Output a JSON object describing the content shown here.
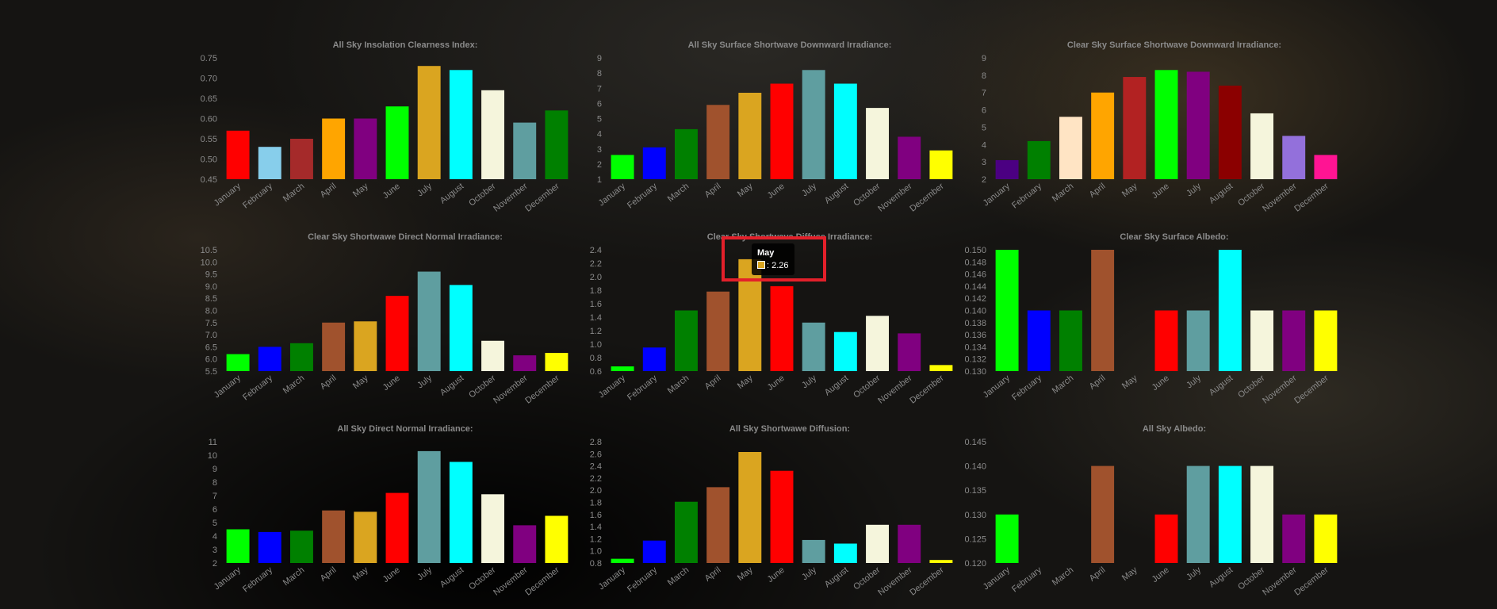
{
  "chart_data": [
    {
      "type": "bar",
      "title": "All Sky Insolation Clearness Index:",
      "categories": [
        "January",
        "February",
        "March",
        "April",
        "May",
        "June",
        "July",
        "August",
        "October",
        "November",
        "December"
      ],
      "values": [
        0.57,
        0.53,
        0.55,
        0.6,
        0.6,
        0.63,
        0.73,
        0.72,
        0.67,
        0.59,
        0.62
      ],
      "colors": [
        "#ff0000",
        "#87ceeb",
        "#a52a2a",
        "#ffa500",
        "#800080",
        "#00ff00",
        "#daa520",
        "#00ffff",
        "#f5f5dc",
        "#5f9ea0",
        "#008000"
      ],
      "ylim": [
        0.45,
        0.75
      ],
      "yticks": [
        "0.45",
        "0.50",
        "0.55",
        "0.60",
        "0.65",
        "0.70",
        "0.75"
      ]
    },
    {
      "type": "bar",
      "title": "All Sky Surface Shortwave Downward Irradiance:",
      "categories": [
        "January",
        "February",
        "March",
        "April",
        "May",
        "June",
        "July",
        "August",
        "October",
        "November",
        "December"
      ],
      "values": [
        2.6,
        3.1,
        4.3,
        5.9,
        6.7,
        7.3,
        8.2,
        7.3,
        5.7,
        3.8,
        2.9
      ],
      "colors": [
        "#00ff00",
        "#0000ff",
        "#008000",
        "#a0522d",
        "#daa520",
        "#ff0000",
        "#5f9ea0",
        "#00ffff",
        "#f5f5dc",
        "#800080",
        "#ffff00"
      ],
      "ylim": [
        1,
        9
      ],
      "yticks": [
        "1",
        "2",
        "3",
        "4",
        "5",
        "6",
        "7",
        "8",
        "9"
      ]
    },
    {
      "type": "bar",
      "title": "Clear Sky Surface Shortwave Downward Irradiance:",
      "categories": [
        "January",
        "February",
        "March",
        "April",
        "May",
        "June",
        "July",
        "August",
        "October",
        "November",
        "December"
      ],
      "values": [
        3.1,
        4.2,
        5.6,
        7.0,
        7.9,
        8.3,
        8.2,
        7.4,
        5.8,
        4.5,
        3.4
      ],
      "colors": [
        "#4b0082",
        "#008000",
        "#ffe4c4",
        "#ffa500",
        "#b22222",
        "#00ff00",
        "#800080",
        "#8b0000",
        "#f5f5dc",
        "#9370db",
        "#ff1493"
      ],
      "ylim": [
        2,
        9
      ],
      "yticks": [
        "2",
        "3",
        "4",
        "5",
        "6",
        "7",
        "8",
        "9"
      ]
    },
    {
      "type": "bar",
      "title": "Clear Sky Shortwawe Direct Normal Irradiance:",
      "categories": [
        "January",
        "February",
        "March",
        "April",
        "May",
        "June",
        "July",
        "August",
        "October",
        "November",
        "December"
      ],
      "values": [
        6.2,
        6.5,
        6.65,
        7.5,
        7.55,
        8.6,
        9.6,
        9.05,
        6.75,
        6.15,
        6.25
      ],
      "colors": [
        "#00ff00",
        "#0000ff",
        "#008000",
        "#a0522d",
        "#daa520",
        "#ff0000",
        "#5f9ea0",
        "#00ffff",
        "#f5f5dc",
        "#800080",
        "#ffff00"
      ],
      "ylim": [
        5.5,
        10.5
      ],
      "yticks": [
        "5.5",
        "6.0",
        "6.5",
        "7.0",
        "7.5",
        "8.0",
        "8.5",
        "9.0",
        "9.5",
        "10.0",
        "10.5"
      ]
    },
    {
      "type": "bar",
      "title": "Clear Sky Shortwave Diffuse Irradiance:",
      "categories": [
        "January",
        "February",
        "March",
        "April",
        "May",
        "June",
        "July",
        "August",
        "October",
        "November",
        "December"
      ],
      "values": [
        0.67,
        0.95,
        1.5,
        1.78,
        2.26,
        1.86,
        1.32,
        1.18,
        1.42,
        1.16,
        0.69
      ],
      "colors": [
        "#00ff00",
        "#0000ff",
        "#008000",
        "#a0522d",
        "#daa520",
        "#ff0000",
        "#5f9ea0",
        "#00ffff",
        "#f5f5dc",
        "#800080",
        "#ffff00"
      ],
      "ylim": [
        0.6,
        2.4
      ],
      "yticks": [
        "0.6",
        "0.8",
        "1.0",
        "1.2",
        "1.4",
        "1.6",
        "1.8",
        "2.0",
        "2.2",
        "2.4"
      ]
    },
    {
      "type": "bar",
      "title": "Clear Sky Surface Albedo:",
      "categories": [
        "January",
        "February",
        "March",
        "April",
        "May",
        "June",
        "July",
        "August",
        "October",
        "November",
        "December"
      ],
      "values": [
        0.15,
        0.14,
        0.14,
        0.15,
        0.13,
        0.14,
        0.14,
        0.15,
        0.14,
        0.14,
        0.14
      ],
      "colors": [
        "#00ff00",
        "#0000ff",
        "#008000",
        "#a0522d",
        "#daa520",
        "#ff0000",
        "#5f9ea0",
        "#00ffff",
        "#f5f5dc",
        "#800080",
        "#ffff00"
      ],
      "ylim": [
        0.13,
        0.15
      ],
      "yticks": [
        "0.130",
        "0.132",
        "0.134",
        "0.136",
        "0.138",
        "0.140",
        "0.142",
        "0.144",
        "0.146",
        "0.148",
        "0.150"
      ]
    },
    {
      "type": "bar",
      "title": "All Sky Direct Normal Irradiance:",
      "categories": [
        "January",
        "February",
        "March",
        "April",
        "May",
        "June",
        "July",
        "August",
        "October",
        "November",
        "December"
      ],
      "values": [
        4.5,
        4.3,
        4.4,
        5.9,
        5.8,
        7.2,
        10.3,
        9.5,
        7.1,
        4.8,
        5.5
      ],
      "colors": [
        "#00ff00",
        "#0000ff",
        "#008000",
        "#a0522d",
        "#daa520",
        "#ff0000",
        "#5f9ea0",
        "#00ffff",
        "#f5f5dc",
        "#800080",
        "#ffff00"
      ],
      "ylim": [
        2,
        11
      ],
      "yticks": [
        "2",
        "3",
        "4",
        "5",
        "6",
        "7",
        "8",
        "9",
        "10",
        "11"
      ]
    },
    {
      "type": "bar",
      "title": "All Sky Shortwawe Diffusion:",
      "categories": [
        "January",
        "February",
        "March",
        "April",
        "May",
        "June",
        "July",
        "August",
        "October",
        "November",
        "December"
      ],
      "values": [
        0.87,
        1.17,
        1.81,
        2.05,
        2.63,
        2.32,
        1.18,
        1.12,
        1.43,
        1.43,
        0.85
      ],
      "colors": [
        "#00ff00",
        "#0000ff",
        "#008000",
        "#a0522d",
        "#daa520",
        "#ff0000",
        "#5f9ea0",
        "#00ffff",
        "#f5f5dc",
        "#800080",
        "#ffff00"
      ],
      "ylim": [
        0.8,
        2.8
      ],
      "yticks": [
        "0.8",
        "1.0",
        "1.2",
        "1.4",
        "1.6",
        "1.8",
        "2.0",
        "2.2",
        "2.4",
        "2.6",
        "2.8"
      ]
    },
    {
      "type": "bar",
      "title": "All Sky Albedo:",
      "categories": [
        "January",
        "February",
        "March",
        "April",
        "May",
        "June",
        "July",
        "August",
        "October",
        "November",
        "December"
      ],
      "values": [
        0.13,
        0.12,
        0.12,
        0.14,
        0.12,
        0.13,
        0.14,
        0.14,
        0.14,
        0.13,
        0.13
      ],
      "colors": [
        "#00ff00",
        "#0000ff",
        "#008000",
        "#a0522d",
        "#daa520",
        "#ff0000",
        "#5f9ea0",
        "#00ffff",
        "#f5f5dc",
        "#800080",
        "#ffff00"
      ],
      "ylim": [
        0.12,
        0.145
      ],
      "yticks": [
        "0.120",
        "0.125",
        "0.130",
        "0.135",
        "0.140",
        "0.145"
      ]
    }
  ],
  "tooltip": {
    "title": "May",
    "value_text": ": 2.26",
    "swatch_color": "#daa520"
  }
}
